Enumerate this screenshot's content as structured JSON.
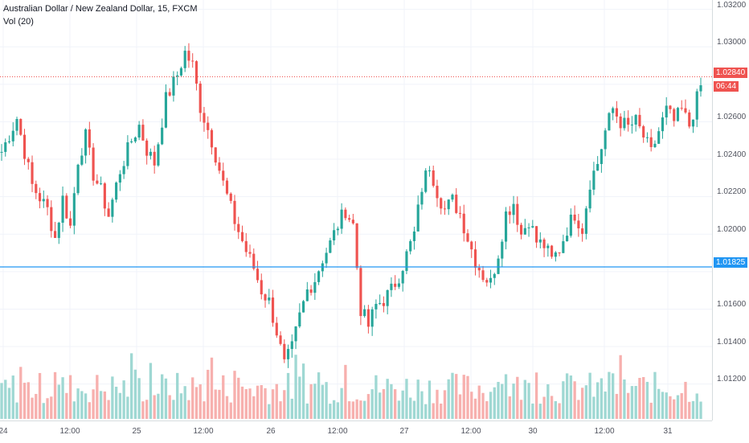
{
  "legend": {
    "title": "Australian Dollar / New Zealand Dollar, 15, FXCM",
    "volume_label": "Vol (20)"
  },
  "price_axis": {
    "ticks": [
      "1.03200",
      "1.03000",
      "1.02600",
      "1.02400",
      "1.02200",
      "1.02000",
      "1.01600",
      "1.01400",
      "1.01200"
    ],
    "range": [
      1.0098,
      1.0322
    ]
  },
  "time_axis": {
    "labels": [
      "24",
      "12:00",
      "25",
      "12:00",
      "26",
      "12:00",
      "27",
      "12:00",
      "30",
      "12:00",
      "31"
    ]
  },
  "badges": {
    "last_price": "1.02840",
    "countdown": "06:44",
    "level_price": "1.01825"
  },
  "colors": {
    "up": "#26a69a",
    "down": "#ef5350",
    "up_volume": "#9fd8d3",
    "down_volume": "#f7b0ae",
    "level_line": "#2196f3",
    "last_price_line": "#ef5350",
    "grid": "#f0f3fa"
  },
  "chart_data": {
    "type": "candlestick",
    "interval": "15",
    "symbol": "AUD/NZD",
    "close_path": [
      [
        0,
        1.0244
      ],
      [
        4,
        1.0262
      ],
      [
        8,
        1.0226
      ],
      [
        12,
        1.0213
      ],
      [
        14,
        1.0198
      ],
      [
        16,
        1.0219
      ],
      [
        18,
        1.0204
      ],
      [
        20,
        1.024
      ],
      [
        22,
        1.0252
      ],
      [
        24,
        1.0232
      ],
      [
        26,
        1.0223
      ],
      [
        28,
        1.021
      ],
      [
        31,
        1.0234
      ],
      [
        34,
        1.025
      ],
      [
        36,
        1.0258
      ],
      [
        38,
        1.0245
      ],
      [
        40,
        1.0238
      ],
      [
        43,
        1.0272
      ],
      [
        46,
        1.0285
      ],
      [
        48,
        1.0297
      ],
      [
        50,
        1.029
      ],
      [
        52,
        1.0268
      ],
      [
        55,
        1.025
      ],
      [
        58,
        1.0227
      ],
      [
        61,
        1.0207
      ],
      [
        64,
        1.0191
      ],
      [
        66,
        1.0182
      ],
      [
        68,
        1.017
      ],
      [
        70,
        1.0164
      ],
      [
        72,
        1.0148
      ],
      [
        74,
        1.013
      ],
      [
        76,
        1.0139
      ],
      [
        78,
        1.0156
      ],
      [
        80,
        1.017
      ],
      [
        82,
        1.0176
      ],
      [
        84,
        1.0187
      ],
      [
        86,
        1.0195
      ],
      [
        88,
        1.0205
      ],
      [
        90,
        1.0213
      ],
      [
        92,
        1.0205
      ],
      [
        94,
        1.016
      ],
      [
        96,
        1.0151
      ],
      [
        98,
        1.0162
      ],
      [
        100,
        1.0165
      ],
      [
        102,
        1.017
      ],
      [
        104,
        1.0178
      ],
      [
        106,
        1.0189
      ],
      [
        108,
        1.02
      ],
      [
        110,
        1.0225
      ],
      [
        112,
        1.0237
      ],
      [
        114,
        1.0223
      ],
      [
        116,
        1.0213
      ],
      [
        118,
        1.0218
      ],
      [
        120,
        1.0211
      ],
      [
        122,
        1.0198
      ],
      [
        124,
        1.0186
      ],
      [
        126,
        1.0178
      ],
      [
        128,
        1.0174
      ],
      [
        130,
        1.019
      ],
      [
        132,
        1.0211
      ],
      [
        134,
        1.0217
      ],
      [
        136,
        1.02
      ],
      [
        138,
        1.0208
      ],
      [
        140,
        1.0196
      ],
      [
        142,
        1.0194
      ],
      [
        144,
        1.0186
      ],
      [
        146,
        1.0192
      ],
      [
        148,
        1.0203
      ],
      [
        150,
        1.0211
      ],
      [
        152,
        1.0203
      ],
      [
        154,
        1.0228
      ],
      [
        156,
        1.0238
      ],
      [
        158,
        1.0255
      ],
      [
        160,
        1.0267
      ],
      [
        162,
        1.026
      ],
      [
        164,
        1.0257
      ],
      [
        166,
        1.026
      ],
      [
        168,
        1.0252
      ],
      [
        170,
        1.0243
      ],
      [
        172,
        1.0255
      ],
      [
        174,
        1.0266
      ],
      [
        176,
        1.026
      ],
      [
        178,
        1.0266
      ],
      [
        180,
        1.0258
      ],
      [
        183,
        1.0279
      ]
    ],
    "candle_count": 184,
    "volume_range": [
      0,
      60
    ],
    "horizontal_levels": [
      {
        "label": "last_price",
        "value": 1.0284,
        "style": "dotted"
      },
      {
        "label": "level",
        "value": 1.01825,
        "style": "solid"
      }
    ],
    "grid": true
  }
}
